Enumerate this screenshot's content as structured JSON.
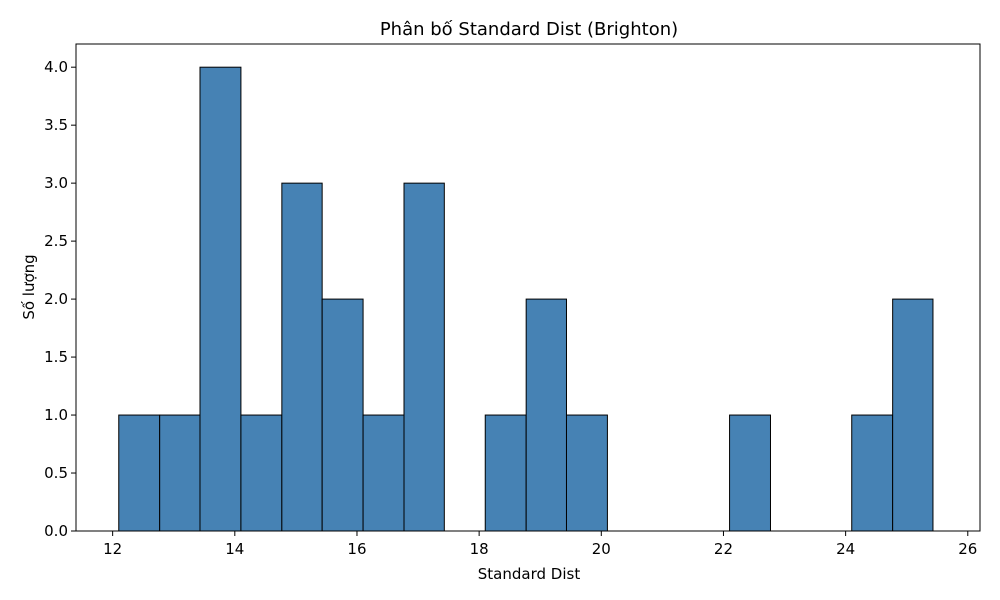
{
  "chart_data": {
    "type": "bar",
    "title": "Phân bố Standard Dist (Brighton)",
    "xlabel": "Standard Dist",
    "ylabel": "Số lượng",
    "xlim": [
      11.4,
      26.2
    ],
    "ylim": [
      0,
      4.2
    ],
    "xticks": [
      12,
      14,
      16,
      18,
      20,
      22,
      24,
      26
    ],
    "yticks": [
      0.0,
      0.5,
      1.0,
      1.5,
      2.0,
      2.5,
      3.0,
      3.5,
      4.0
    ],
    "bins": [
      {
        "x0": 12.1,
        "x1": 12.77,
        "count": 1
      },
      {
        "x0": 12.77,
        "x1": 13.43,
        "count": 1
      },
      {
        "x0": 13.43,
        "x1": 14.1,
        "count": 4
      },
      {
        "x0": 14.1,
        "x1": 14.77,
        "count": 1
      },
      {
        "x0": 14.77,
        "x1": 15.43,
        "count": 3
      },
      {
        "x0": 15.43,
        "x1": 16.1,
        "count": 2
      },
      {
        "x0": 16.1,
        "x1": 16.77,
        "count": 1
      },
      {
        "x0": 16.77,
        "x1": 17.43,
        "count": 3
      },
      {
        "x0": 17.43,
        "x1": 18.1,
        "count": 0
      },
      {
        "x0": 18.1,
        "x1": 18.77,
        "count": 1
      },
      {
        "x0": 18.77,
        "x1": 19.43,
        "count": 2
      },
      {
        "x0": 19.43,
        "x1": 20.1,
        "count": 1
      },
      {
        "x0": 20.1,
        "x1": 20.77,
        "count": 0
      },
      {
        "x0": 20.77,
        "x1": 21.43,
        "count": 0
      },
      {
        "x0": 21.43,
        "x1": 22.1,
        "count": 0
      },
      {
        "x0": 22.1,
        "x1": 22.77,
        "count": 1
      },
      {
        "x0": 22.77,
        "x1": 23.43,
        "count": 0
      },
      {
        "x0": 23.43,
        "x1": 24.1,
        "count": 0
      },
      {
        "x0": 24.1,
        "x1": 24.77,
        "count": 1
      },
      {
        "x0": 24.77,
        "x1": 25.43,
        "count": 2
      }
    ],
    "bar_color": "#4682b4",
    "edge_color": "#000000",
    "grid": false,
    "legend": "none"
  }
}
